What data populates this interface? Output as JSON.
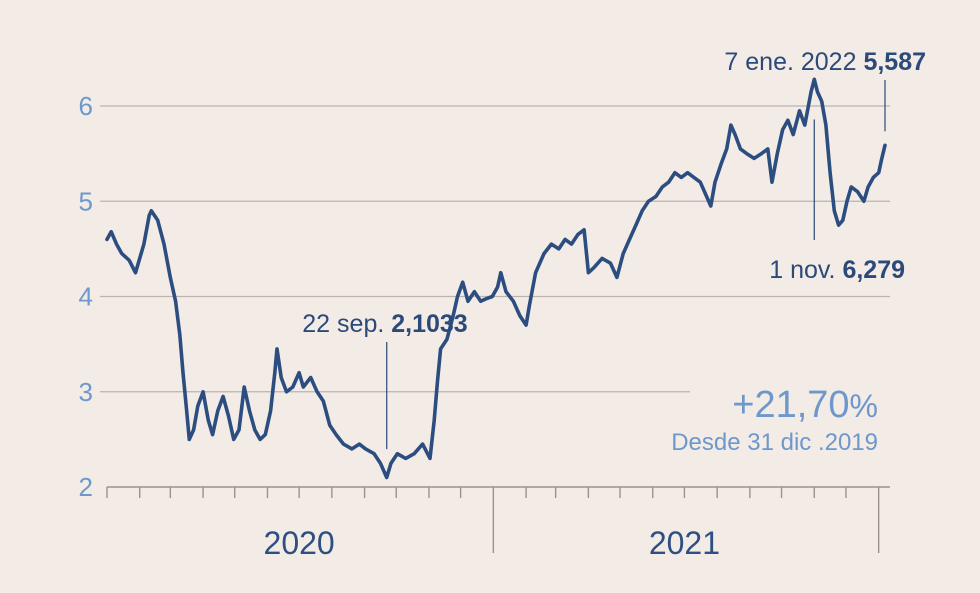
{
  "chart_data": {
    "type": "line",
    "title": "",
    "xlabel": "",
    "ylabel": "",
    "ylim": [
      2,
      6.3
    ],
    "y_ticks": [
      "2",
      "3",
      "4",
      "5",
      "6"
    ],
    "x_year_labels": [
      "2020",
      "2021"
    ],
    "grid": true,
    "color": "#2c4d80",
    "series": [
      {
        "points": [
          [
            "2020-01-01",
            4.6
          ],
          [
            "2020-01-05",
            4.68
          ],
          [
            "2020-01-10",
            4.55
          ],
          [
            "2020-01-15",
            4.45
          ],
          [
            "2020-01-22",
            4.38
          ],
          [
            "2020-01-28",
            4.25
          ],
          [
            "2020-02-05",
            4.55
          ],
          [
            "2020-02-10",
            4.85
          ],
          [
            "2020-02-12",
            4.9
          ],
          [
            "2020-02-18",
            4.8
          ],
          [
            "2020-02-24",
            4.55
          ],
          [
            "2020-03-01",
            4.2
          ],
          [
            "2020-03-06",
            3.95
          ],
          [
            "2020-03-10",
            3.6
          ],
          [
            "2020-03-13",
            3.2
          ],
          [
            "2020-03-16",
            2.85
          ],
          [
            "2020-03-19",
            2.5
          ],
          [
            "2020-03-23",
            2.6
          ],
          [
            "2020-03-27",
            2.85
          ],
          [
            "2020-04-01",
            3.0
          ],
          [
            "2020-04-06",
            2.7
          ],
          [
            "2020-04-10",
            2.55
          ],
          [
            "2020-04-15",
            2.8
          ],
          [
            "2020-04-20",
            2.95
          ],
          [
            "2020-04-25",
            2.75
          ],
          [
            "2020-04-30",
            2.5
          ],
          [
            "2020-05-05",
            2.6
          ],
          [
            "2020-05-10",
            3.05
          ],
          [
            "2020-05-15",
            2.8
          ],
          [
            "2020-05-20",
            2.6
          ],
          [
            "2020-05-25",
            2.5
          ],
          [
            "2020-05-30",
            2.55
          ],
          [
            "2020-06-04",
            2.8
          ],
          [
            "2020-06-08",
            3.2
          ],
          [
            "2020-06-10",
            3.45
          ],
          [
            "2020-06-14",
            3.15
          ],
          [
            "2020-06-19",
            3.0
          ],
          [
            "2020-06-25",
            3.05
          ],
          [
            "2020-07-01",
            3.2
          ],
          [
            "2020-07-05",
            3.05
          ],
          [
            "2020-07-12",
            3.15
          ],
          [
            "2020-07-18",
            3.0
          ],
          [
            "2020-07-24",
            2.9
          ],
          [
            "2020-07-30",
            2.65
          ],
          [
            "2020-08-05",
            2.55
          ],
          [
            "2020-08-12",
            2.45
          ],
          [
            "2020-08-20",
            2.4
          ],
          [
            "2020-08-27",
            2.45
          ],
          [
            "2020-09-02",
            2.4
          ],
          [
            "2020-09-10",
            2.35
          ],
          [
            "2020-09-16",
            2.25
          ],
          [
            "2020-09-22",
            2.1
          ],
          [
            "2020-09-26",
            2.25
          ],
          [
            "2020-10-02",
            2.35
          ],
          [
            "2020-10-10",
            2.3
          ],
          [
            "2020-10-18",
            2.35
          ],
          [
            "2020-10-26",
            2.45
          ],
          [
            "2020-11-02",
            2.3
          ],
          [
            "2020-11-06",
            2.7
          ],
          [
            "2020-11-09",
            3.1
          ],
          [
            "2020-11-12",
            3.45
          ],
          [
            "2020-11-18",
            3.55
          ],
          [
            "2020-11-24",
            3.8
          ],
          [
            "2020-11-28",
            4.0
          ],
          [
            "2020-12-03",
            4.15
          ],
          [
            "2020-12-08",
            3.95
          ],
          [
            "2020-12-14",
            4.05
          ],
          [
            "2020-12-20",
            3.95
          ],
          [
            "2020-12-26",
            3.98
          ],
          [
            "2020-12-31",
            4.0
          ],
          [
            "2021-01-05",
            4.1
          ],
          [
            "2021-01-08",
            4.25
          ],
          [
            "2021-01-13",
            4.05
          ],
          [
            "2021-01-20",
            3.95
          ],
          [
            "2021-01-26",
            3.8
          ],
          [
            "2021-02-01",
            3.7
          ],
          [
            "2021-02-04",
            3.9
          ],
          [
            "2021-02-10",
            4.25
          ],
          [
            "2021-02-18",
            4.45
          ],
          [
            "2021-02-25",
            4.55
          ],
          [
            "2021-03-04",
            4.5
          ],
          [
            "2021-03-10",
            4.6
          ],
          [
            "2021-03-16",
            4.55
          ],
          [
            "2021-03-22",
            4.65
          ],
          [
            "2021-03-28",
            4.7
          ],
          [
            "2021-04-01",
            4.25
          ],
          [
            "2021-04-06",
            4.3
          ],
          [
            "2021-04-14",
            4.4
          ],
          [
            "2021-04-22",
            4.35
          ],
          [
            "2021-04-28",
            4.2
          ],
          [
            "2021-05-04",
            4.45
          ],
          [
            "2021-05-10",
            4.6
          ],
          [
            "2021-05-16",
            4.75
          ],
          [
            "2021-05-22",
            4.9
          ],
          [
            "2021-05-28",
            5.0
          ],
          [
            "2021-06-04",
            5.05
          ],
          [
            "2021-06-10",
            5.15
          ],
          [
            "2021-06-16",
            5.2
          ],
          [
            "2021-06-22",
            5.3
          ],
          [
            "2021-06-28",
            5.25
          ],
          [
            "2021-07-04",
            5.3
          ],
          [
            "2021-07-10",
            5.25
          ],
          [
            "2021-07-16",
            5.2
          ],
          [
            "2021-07-22",
            5.05
          ],
          [
            "2021-07-26",
            4.95
          ],
          [
            "2021-07-30",
            5.2
          ],
          [
            "2021-08-05",
            5.4
          ],
          [
            "2021-08-10",
            5.55
          ],
          [
            "2021-08-14",
            5.8
          ],
          [
            "2021-08-18",
            5.7
          ],
          [
            "2021-08-23",
            5.55
          ],
          [
            "2021-08-29",
            5.5
          ],
          [
            "2021-09-05",
            5.45
          ],
          [
            "2021-09-12",
            5.5
          ],
          [
            "2021-09-18",
            5.55
          ],
          [
            "2021-09-22",
            5.2
          ],
          [
            "2021-09-27",
            5.5
          ],
          [
            "2021-10-02",
            5.75
          ],
          [
            "2021-10-07",
            5.85
          ],
          [
            "2021-10-12",
            5.7
          ],
          [
            "2021-10-18",
            5.95
          ],
          [
            "2021-10-23",
            5.8
          ],
          [
            "2021-10-29",
            6.15
          ],
          [
            "2021-11-01",
            6.28
          ],
          [
            "2021-11-04",
            6.15
          ],
          [
            "2021-11-08",
            6.05
          ],
          [
            "2021-11-12",
            5.8
          ],
          [
            "2021-11-16",
            5.3
          ],
          [
            "2021-11-20",
            4.9
          ],
          [
            "2021-11-24",
            4.75
          ],
          [
            "2021-11-28",
            4.8
          ],
          [
            "2021-12-02",
            5.0
          ],
          [
            "2021-12-06",
            5.15
          ],
          [
            "2021-12-12",
            5.1
          ],
          [
            "2021-12-18",
            5.0
          ],
          [
            "2021-12-22",
            5.15
          ],
          [
            "2021-12-27",
            5.25
          ],
          [
            "2022-01-01",
            5.3
          ],
          [
            "2022-01-04",
            5.45
          ],
          [
            "2022-01-07",
            5.587
          ]
        ]
      }
    ],
    "annotations": {
      "min": {
        "date_text": "22 sep.",
        "value_text": "2,1033",
        "x": "2020-09-22",
        "y": 2.1033
      },
      "max": {
        "date_text": "1 nov.",
        "value_text": "6,279",
        "x": "2021-11-01",
        "y": 6.279
      },
      "last": {
        "date_text": "7 ene. 2022",
        "value_text": "5,587",
        "x": "2022-01-07",
        "y": 5.587
      }
    },
    "stat": {
      "value": "+21,70",
      "unit": "%",
      "note": "Desde 31 dic .2019"
    }
  }
}
